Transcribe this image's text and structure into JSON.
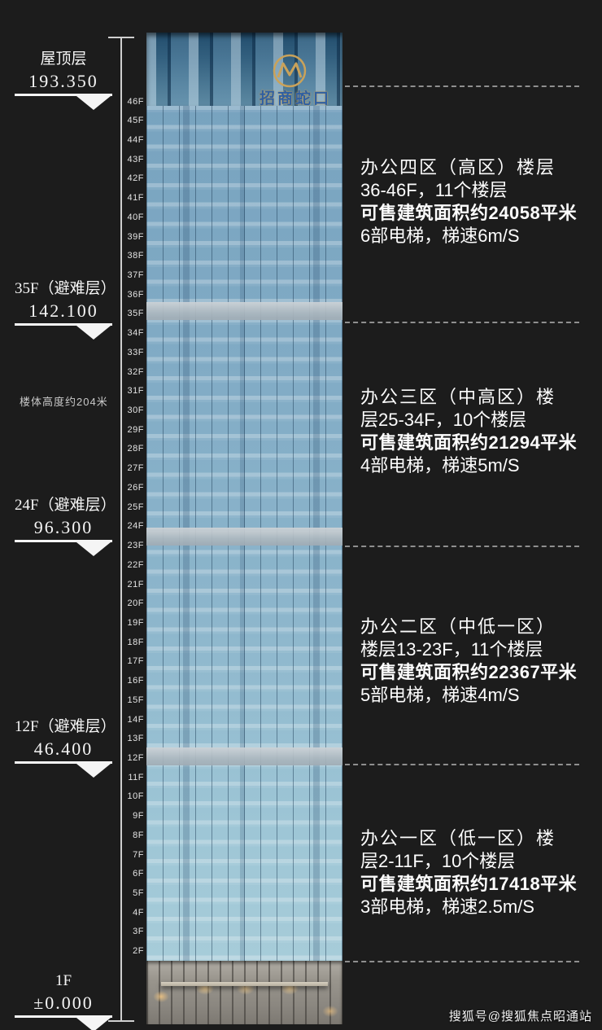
{
  "markers": [
    {
      "label": "屋顶层",
      "value": "193.350"
    },
    {
      "label": "35F（避难层）",
      "value": "142.100"
    },
    {
      "label": "24F（避难层）",
      "value": "96.300"
    },
    {
      "label": "12F（避难层）",
      "value": "46.400"
    },
    {
      "label": "1F",
      "value": "±0.000"
    }
  ],
  "height_note": "楼体高度约204米",
  "building": {
    "logo": "招商蛇口",
    "logo_icon": "gold double-M emblem",
    "facade_color": "#8db6cc",
    "refuge_band_color": "#aeb9c0",
    "podium_color": "#99958d"
  },
  "floor_labels": [
    "46F",
    "45F",
    "44F",
    "43F",
    "42F",
    "41F",
    "40F",
    "39F",
    "38F",
    "37F",
    "36F",
    "35F",
    "34F",
    "33F",
    "32F",
    "31F",
    "30F",
    "29F",
    "28F",
    "27F",
    "26F",
    "25F",
    "24F",
    "23F",
    "22F",
    "21F",
    "20F",
    "19F",
    "18F",
    "17F",
    "16F",
    "15F",
    "14F",
    "13F",
    "12F",
    "11F",
    "10F",
    "9F",
    "8F",
    "7F",
    "6F",
    "5F",
    "4F",
    "3F",
    "2F"
  ],
  "zones": [
    {
      "title": "办公四区（高区）楼层",
      "range": "36-46F，11个楼层",
      "area": "可售建筑面积约24058平米",
      "elevators": "6部电梯，梯速6m/S"
    },
    {
      "title": "办公三区（中高区）楼",
      "range": "层25-34F，10个楼层",
      "area": "可售建筑面积约21294平米",
      "elevators": "4部电梯，梯速5m/S"
    },
    {
      "title": "办公二区（中低一区）",
      "range": "楼层13-23F，11个楼层",
      "area": "可售建筑面积约22367平米",
      "elevators": "5部电梯，梯速4m/S"
    },
    {
      "title": "办公一区（低一区）楼",
      "range": "层2-11F，10个楼层",
      "area": "可售建筑面积约17418平米",
      "elevators": "3部电梯，梯速2.5m/S"
    }
  ],
  "watermark": "搜狐号@搜狐焦点昭通站"
}
